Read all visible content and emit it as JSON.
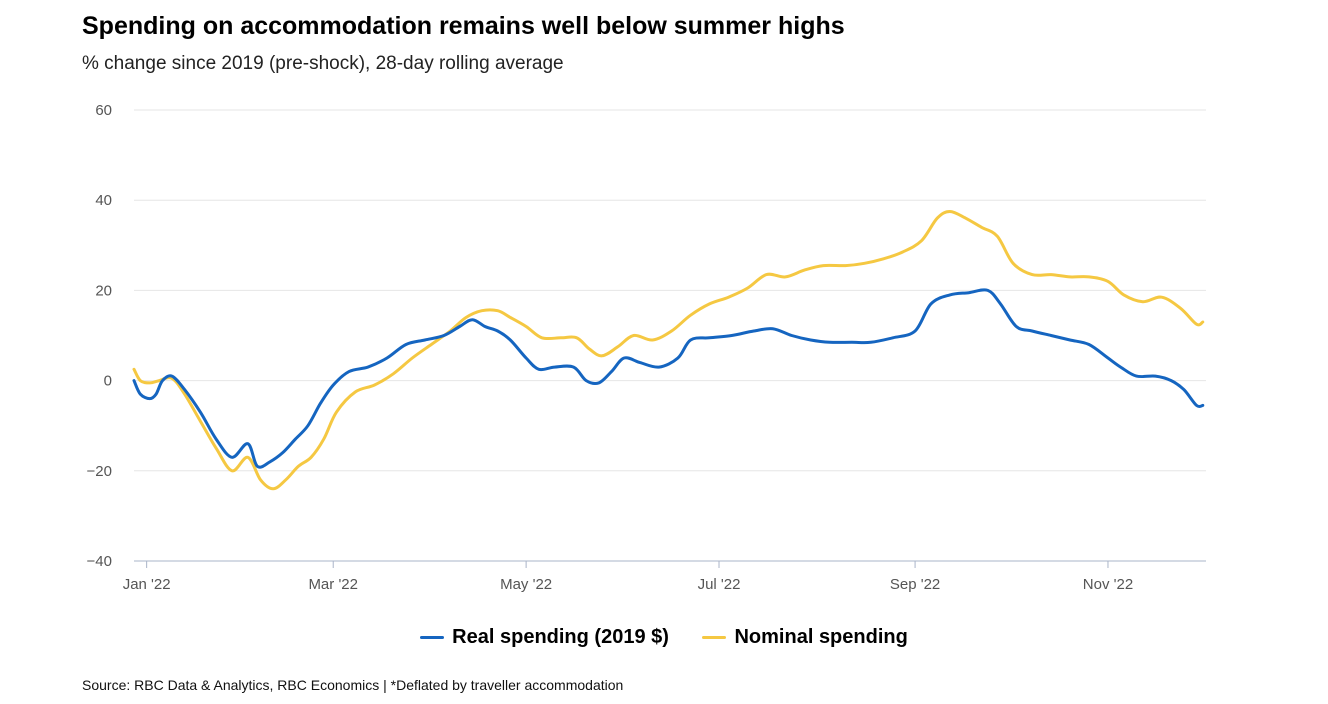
{
  "chart_data": {
    "type": "line",
    "title": "Spending on accommodation remains well below summer highs",
    "subtitle": "% change since 2019 (pre-shock), 28-day rolling average",
    "ylim": [
      -40,
      60
    ],
    "yticks": [
      60,
      40,
      20,
      0,
      -20,
      -40
    ],
    "xlim": [
      "2021-12-28",
      "2022-12-02"
    ],
    "xticks": [
      {
        "date": "2022-01-01",
        "label": "Jan '22"
      },
      {
        "date": "2022-03-01",
        "label": "Mar '22"
      },
      {
        "date": "2022-05-01",
        "label": "May '22"
      },
      {
        "date": "2022-07-01",
        "label": "Jul '22"
      },
      {
        "date": "2022-09-01",
        "label": "Sep '22"
      },
      {
        "date": "2022-11-01",
        "label": "Nov '22"
      }
    ],
    "grid": true,
    "legend_position": "bottom-center",
    "series": [
      {
        "name": "Real spending (2019 $)",
        "color": "#1565c0",
        "points": [
          [
            "2021-12-28",
            0
          ],
          [
            "2021-12-30",
            -3
          ],
          [
            "2022-01-02",
            -4
          ],
          [
            "2022-01-04",
            -3
          ],
          [
            "2022-01-06",
            0
          ],
          [
            "2022-01-09",
            1
          ],
          [
            "2022-01-13",
            -2
          ],
          [
            "2022-01-18",
            -7
          ],
          [
            "2022-01-23",
            -13
          ],
          [
            "2022-01-28",
            -17
          ],
          [
            "2022-02-02",
            -14
          ],
          [
            "2022-02-05",
            -19
          ],
          [
            "2022-02-09",
            -18
          ],
          [
            "2022-02-13",
            -16
          ],
          [
            "2022-02-17",
            -13
          ],
          [
            "2022-02-21",
            -10
          ],
          [
            "2022-02-25",
            -5
          ],
          [
            "2022-03-01",
            -1
          ],
          [
            "2022-03-06",
            2
          ],
          [
            "2022-03-12",
            3
          ],
          [
            "2022-03-18",
            5
          ],
          [
            "2022-03-24",
            8
          ],
          [
            "2022-03-30",
            9
          ],
          [
            "2022-04-05",
            10
          ],
          [
            "2022-04-10",
            12
          ],
          [
            "2022-04-14",
            13.5
          ],
          [
            "2022-04-18",
            12
          ],
          [
            "2022-04-22",
            11
          ],
          [
            "2022-04-26",
            9
          ],
          [
            "2022-05-01",
            5
          ],
          [
            "2022-05-05",
            2.5
          ],
          [
            "2022-05-10",
            3
          ],
          [
            "2022-05-16",
            3
          ],
          [
            "2022-05-20",
            0
          ],
          [
            "2022-05-24",
            -0.5
          ],
          [
            "2022-05-28",
            2
          ],
          [
            "2022-06-01",
            5
          ],
          [
            "2022-06-06",
            4
          ],
          [
            "2022-06-12",
            3
          ],
          [
            "2022-06-18",
            5
          ],
          [
            "2022-06-22",
            9
          ],
          [
            "2022-06-28",
            9.5
          ],
          [
            "2022-07-05",
            10
          ],
          [
            "2022-07-12",
            11
          ],
          [
            "2022-07-18",
            11.5
          ],
          [
            "2022-07-24",
            10
          ],
          [
            "2022-07-30",
            9
          ],
          [
            "2022-08-05",
            8.5
          ],
          [
            "2022-08-12",
            8.5
          ],
          [
            "2022-08-18",
            8.5
          ],
          [
            "2022-08-25",
            9.5
          ],
          [
            "2022-09-01",
            11
          ],
          [
            "2022-09-06",
            17
          ],
          [
            "2022-09-12",
            19
          ],
          [
            "2022-09-18",
            19.5
          ],
          [
            "2022-09-24",
            20
          ],
          [
            "2022-09-28",
            17
          ],
          [
            "2022-10-03",
            12
          ],
          [
            "2022-10-08",
            11
          ],
          [
            "2022-10-14",
            10
          ],
          [
            "2022-10-20",
            9
          ],
          [
            "2022-10-26",
            8
          ],
          [
            "2022-11-01",
            5
          ],
          [
            "2022-11-05",
            3
          ],
          [
            "2022-11-10",
            1
          ],
          [
            "2022-11-16",
            1
          ],
          [
            "2022-11-21",
            0
          ],
          [
            "2022-11-25",
            -2
          ],
          [
            "2022-11-29",
            -5.5
          ],
          [
            "2022-12-01",
            -5.5
          ]
        ]
      },
      {
        "name": "Nominal spending",
        "color": "#f5c842",
        "points": [
          [
            "2021-12-28",
            2.5
          ],
          [
            "2021-12-30",
            0
          ],
          [
            "2022-01-02",
            -0.5
          ],
          [
            "2022-01-05",
            0
          ],
          [
            "2022-01-09",
            0.5
          ],
          [
            "2022-01-13",
            -3
          ],
          [
            "2022-01-18",
            -9
          ],
          [
            "2022-01-23",
            -15
          ],
          [
            "2022-01-28",
            -20
          ],
          [
            "2022-02-02",
            -17
          ],
          [
            "2022-02-06",
            -22
          ],
          [
            "2022-02-10",
            -24
          ],
          [
            "2022-02-14",
            -22
          ],
          [
            "2022-02-18",
            -19
          ],
          [
            "2022-02-22",
            -17
          ],
          [
            "2022-02-26",
            -13
          ],
          [
            "2022-03-02",
            -7
          ],
          [
            "2022-03-08",
            -2.5
          ],
          [
            "2022-03-14",
            -1
          ],
          [
            "2022-03-20",
            1.5
          ],
          [
            "2022-03-26",
            5
          ],
          [
            "2022-04-01",
            8
          ],
          [
            "2022-04-07",
            11
          ],
          [
            "2022-04-12",
            14
          ],
          [
            "2022-04-17",
            15.5
          ],
          [
            "2022-04-22",
            15.5
          ],
          [
            "2022-04-26",
            14
          ],
          [
            "2022-05-01",
            12
          ],
          [
            "2022-05-06",
            9.5
          ],
          [
            "2022-05-12",
            9.5
          ],
          [
            "2022-05-17",
            9.5
          ],
          [
            "2022-05-21",
            7
          ],
          [
            "2022-05-25",
            5.5
          ],
          [
            "2022-05-30",
            7.5
          ],
          [
            "2022-06-04",
            10
          ],
          [
            "2022-06-10",
            9
          ],
          [
            "2022-06-16",
            11
          ],
          [
            "2022-06-22",
            14.5
          ],
          [
            "2022-06-28",
            17
          ],
          [
            "2022-07-04",
            18.5
          ],
          [
            "2022-07-10",
            20.5
          ],
          [
            "2022-07-16",
            23.5
          ],
          [
            "2022-07-22",
            23
          ],
          [
            "2022-07-28",
            24.5
          ],
          [
            "2022-08-03",
            25.5
          ],
          [
            "2022-08-10",
            25.5
          ],
          [
            "2022-08-16",
            26
          ],
          [
            "2022-08-22",
            27
          ],
          [
            "2022-08-28",
            28.5
          ],
          [
            "2022-09-03",
            31
          ],
          [
            "2022-09-08",
            36
          ],
          [
            "2022-09-12",
            37.5
          ],
          [
            "2022-09-17",
            36
          ],
          [
            "2022-09-22",
            34
          ],
          [
            "2022-09-27",
            32
          ],
          [
            "2022-10-02",
            26
          ],
          [
            "2022-10-08",
            23.5
          ],
          [
            "2022-10-14",
            23.5
          ],
          [
            "2022-10-20",
            23
          ],
          [
            "2022-10-26",
            23
          ],
          [
            "2022-11-01",
            22
          ],
          [
            "2022-11-06",
            19
          ],
          [
            "2022-11-12",
            17.5
          ],
          [
            "2022-11-18",
            18.5
          ],
          [
            "2022-11-24",
            16
          ],
          [
            "2022-11-29",
            12.5
          ],
          [
            "2022-12-01",
            13
          ]
        ]
      }
    ]
  },
  "source": "Source: RBC Data & Analytics, RBC Economics  | *Deflated by traveller accommodation"
}
